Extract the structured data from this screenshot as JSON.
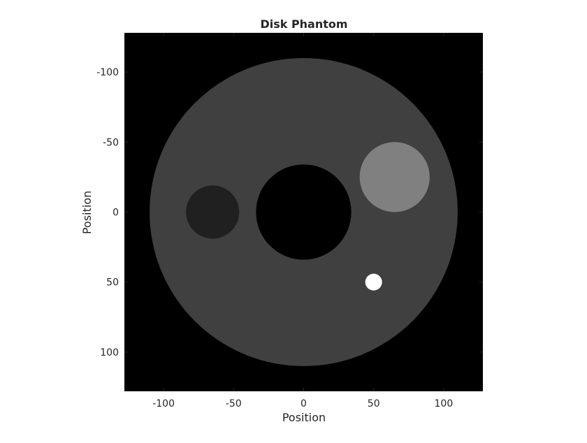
{
  "chart_data": {
    "type": "heatmap",
    "title": "Disk Phantom",
    "xlabel": "Position",
    "ylabel": "Position",
    "xlim": [
      -128,
      128
    ],
    "ylim": [
      -128,
      128
    ],
    "y_direction": "reversed",
    "x_ticks": [
      -100,
      -50,
      0,
      50,
      100
    ],
    "y_ticks": [
      -100,
      -50,
      0,
      50,
      100
    ],
    "x_tick_labels": [
      "-100",
      "-50",
      "0",
      "50",
      "100"
    ],
    "y_tick_labels": [
      "-100",
      "-50",
      "0",
      "50",
      "100"
    ],
    "colormap": "gray",
    "background_color": "#000000",
    "disks": [
      {
        "name": "outer",
        "cx": 0,
        "cy": 0,
        "r": 110,
        "color": "#404040"
      },
      {
        "name": "dark-left",
        "cx": -65,
        "cy": 0,
        "r": 19,
        "color": "#202020"
      },
      {
        "name": "center-hole",
        "cx": 0,
        "cy": 0,
        "r": 34,
        "color": "#000000"
      },
      {
        "name": "bright-right",
        "cx": 65,
        "cy": -25,
        "r": 25,
        "color": "#808080"
      },
      {
        "name": "white-small",
        "cx": 50,
        "cy": 50,
        "r": 6,
        "color": "#ffffff"
      }
    ]
  }
}
